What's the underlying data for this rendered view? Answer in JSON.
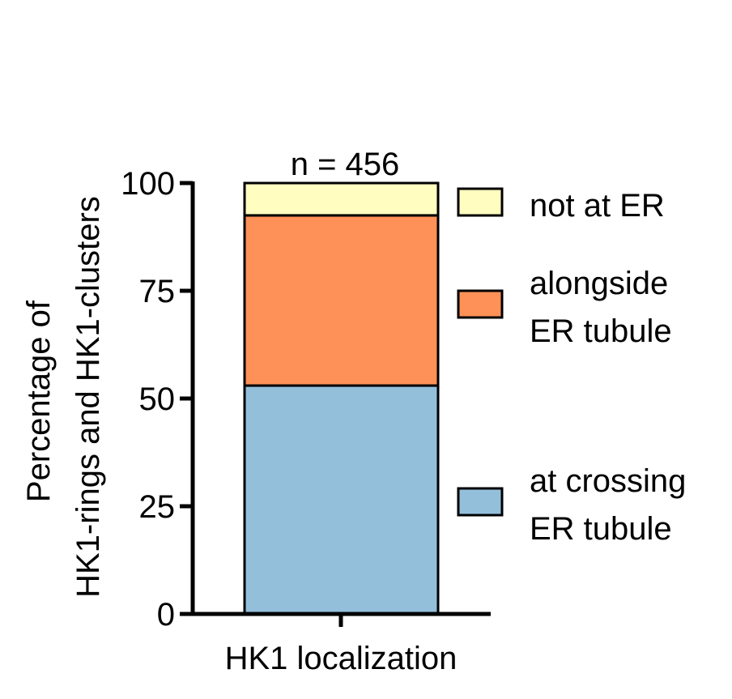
{
  "chart_data": {
    "type": "bar",
    "stacked": true,
    "categories": [
      "HK1 localization"
    ],
    "series": [
      {
        "name": "at crossing ER tubule",
        "values": [
          53
        ],
        "color": "#94bfdb"
      },
      {
        "name": "alongside ER tubule",
        "values": [
          39.5
        ],
        "color": "#fd9158"
      },
      {
        "name": "not at ER",
        "values": [
          7.5
        ],
        "color": "#fffdbf"
      }
    ],
    "ylim": [
      0,
      100
    ],
    "yticks": [
      0,
      25,
      50,
      75,
      100
    ],
    "ylabel": [
      "Percentage of",
      "HK1-rings and HK1-clusters"
    ],
    "xlabel": "HK1 localization",
    "annotation": "n = 456",
    "legend": [
      {
        "lines": [
          "not at ER"
        ],
        "color": "#fffdbf"
      },
      {
        "lines": [
          "alongside",
          "ER tubule"
        ],
        "color": "#fd9158"
      },
      {
        "lines": [
          "at crossing",
          "ER tubule"
        ],
        "color": "#94bfdb"
      }
    ],
    "legend_position": "right",
    "grid": false
  }
}
